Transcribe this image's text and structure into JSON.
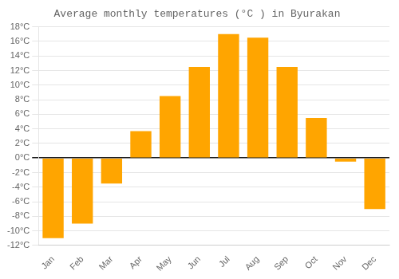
{
  "chart_data": {
    "type": "bar",
    "title": "Average monthly temperatures (°C ) in Byurakan",
    "categories": [
      "Jan",
      "Feb",
      "Mar",
      "Apr",
      "May",
      "Jun",
      "Jul",
      "Aug",
      "Sep",
      "Oct",
      "Nov",
      "Dec"
    ],
    "values": [
      -11,
      -9,
      -3.5,
      3.7,
      8.5,
      12.5,
      17,
      16.5,
      12.5,
      5.5,
      -0.5,
      -7
    ],
    "color": "#FFA500",
    "ylim": [
      -12,
      18
    ],
    "yticks": [
      {
        "value": -12,
        "label": "-12°C"
      },
      {
        "value": -10,
        "label": "-10°C"
      },
      {
        "value": -8,
        "label": "-8°C"
      },
      {
        "value": -6,
        "label": "-6°C"
      },
      {
        "value": -4,
        "label": "-4°C"
      },
      {
        "value": -2,
        "label": "-2°C"
      },
      {
        "value": 0,
        "label": "0°C"
      },
      {
        "value": 2,
        "label": "2°C"
      },
      {
        "value": 4,
        "label": "4°C"
      },
      {
        "value": 6,
        "label": "6°C"
      },
      {
        "value": 8,
        "label": "8°C"
      },
      {
        "value": 10,
        "label": "10°C"
      },
      {
        "value": 12,
        "label": "12°C"
      },
      {
        "value": 14,
        "label": "14°C"
      },
      {
        "value": 16,
        "label": "16°C"
      },
      {
        "value": 18,
        "label": "18°C"
      }
    ],
    "grid": true
  }
}
